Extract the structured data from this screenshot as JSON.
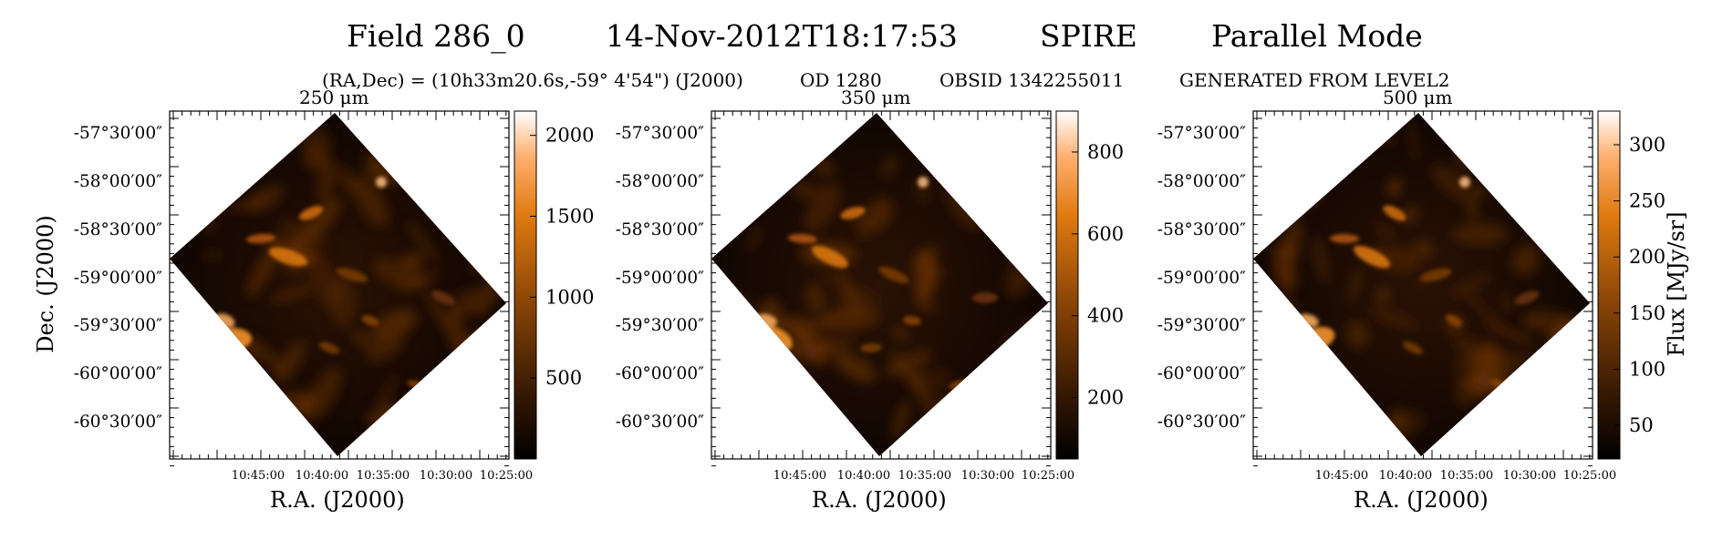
{
  "header": {
    "field": "Field 286_0",
    "date": "14-Nov-2012T18:17:53",
    "instrument": "SPIRE",
    "mode": "Parallel Mode",
    "coords": "(RA,Dec) = (10h33m20.6s,-59° 4'54\") (J2000)",
    "od": "OD 1280",
    "obsid": "OBSID 1342255011",
    "generated": "GENERATED FROM LEVEL2"
  },
  "panels": [
    {
      "band": "250 μm",
      "colorbar_ticks": [
        "2000",
        "1500",
        "1000",
        "500"
      ]
    },
    {
      "band": "350 μm",
      "colorbar_ticks": [
        "800",
        "600",
        "400",
        "200"
      ]
    },
    {
      "band": "500 μm",
      "colorbar_ticks": [
        "300",
        "250",
        "200",
        "150",
        "100",
        "50"
      ]
    }
  ],
  "axes": {
    "ylabel": "Dec. (J2000)",
    "xlabel": "R.A. (J2000)",
    "colorbar_label": "Flux [MJy/sr]",
    "dec_ticks": [
      "-57°30′00″",
      "-58°00′00″",
      "-58°30′00″",
      "-59°00′00″",
      "-59°30′00″",
      "-60°00′00″",
      "-60°30′00″"
    ],
    "ra_ticks": [
      "10:45:00",
      "10:40:00",
      "10:35:00",
      "10:30:00",
      "10:25:00"
    ]
  },
  "colormap": [
    "#000000",
    "#3a1a02",
    "#8a4506",
    "#e07a10",
    "#ffb070",
    "#ffffff"
  ]
}
